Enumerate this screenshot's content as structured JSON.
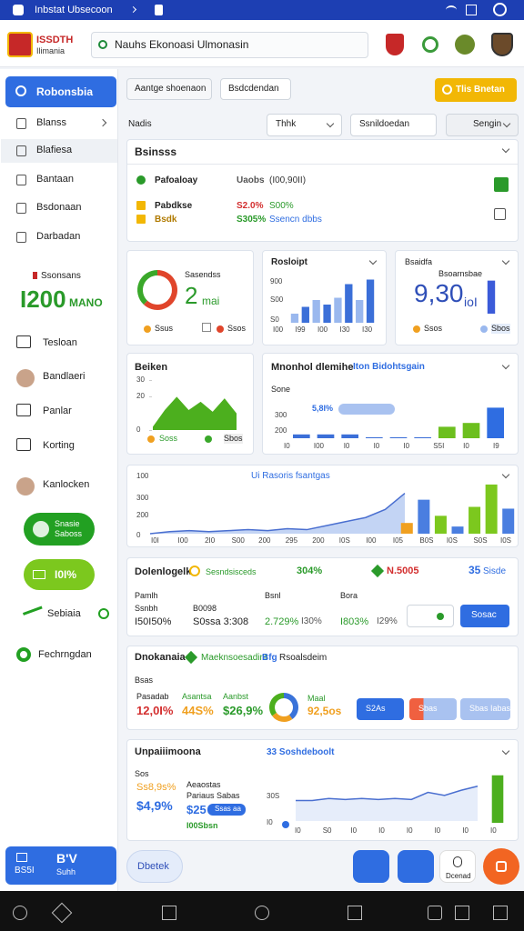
{
  "status_bar": {
    "title": "Inbstat Ubsecoon"
  },
  "header": {
    "logo": "ISSDTH",
    "logo_sub": "Ilimania",
    "search": "Nauhs Ekonoasi Ulmonasin"
  },
  "sidebar": {
    "active": "Robonsbia",
    "items": [
      "Blanss",
      "Blafiesa",
      "Bantaan",
      "Bsdonaan",
      "Darbadan"
    ],
    "stat_label": "Ssonsans",
    "stat_value": "I200",
    "stat_unit": "MANO",
    "links": [
      "Tesloan",
      "Bandlaeri",
      "Panlar",
      "Korting",
      "Kanlocken"
    ],
    "pill1": [
      "Snasie",
      "Saboss"
    ],
    "pill2": "I0I%",
    "toggle_label": "Sebiaia",
    "footer_link": "Fechrngdan",
    "bottom": {
      "title": "B'V",
      "left": "BS5I",
      "right": "Suhh"
    }
  },
  "toolbar": {
    "buttons": [
      "Aantge shoenaon",
      "Bsdcdendan"
    ],
    "cta": "Tlis Bnetan",
    "label": "Nadis",
    "filters": [
      "Thhk",
      "Ssnildoedan",
      "Sengin"
    ]
  },
  "business": {
    "title": "Bsinsss",
    "rows": [
      [
        "Pafoaloay",
        "Uaobs",
        "(I00,90II)"
      ],
      [
        "Pabdkse",
        "S2.0%",
        "S00%"
      ],
      [
        "Bsdk",
        "S305%",
        "Ssencn dbbs"
      ]
    ]
  },
  "donut_card": {
    "title": "Sasendss",
    "value": "2",
    "unit": "mai",
    "legend": [
      "Ssus",
      "Ssos"
    ],
    "chart": {
      "type": "donut",
      "values": [
        62,
        38
      ],
      "colors": [
        "#e0452b",
        "#3aa82a"
      ]
    }
  },
  "bars_card": {
    "title": "Rosloipt",
    "y_labels": [
      "900",
      "S00",
      "S0"
    ],
    "x_labels": [
      "I00",
      "I99",
      "I00",
      "I30",
      "I30"
    ],
    "chart": {
      "type": "bar",
      "values": [
        8,
        14,
        20,
        16,
        22,
        34,
        20,
        38
      ],
      "ylim": [
        0,
        40
      ],
      "colors": [
        "#9ab8ee",
        "#3b6fd8",
        "#9ab8ee",
        "#3b6fd8",
        "#9ab8ee",
        "#3b6fd8",
        "#9ab8ee",
        "#3b6fd8"
      ]
    }
  },
  "bigstat_card": {
    "title": "Bsaidfa",
    "subtitle": "Bsoarnsbae",
    "value": "9,30",
    "unit": "ioI",
    "legend": [
      "Ssos",
      "Sbos"
    ],
    "chart": {
      "type": "bar",
      "values": [
        40
      ],
      "ylim": [
        0,
        44
      ],
      "color": "#3b5bd9"
    }
  },
  "area_card": {
    "title": "Beiken",
    "legend": [
      "Soss",
      "Sbos"
    ],
    "chart": {
      "type": "area",
      "values": [
        2,
        12,
        20,
        12,
        17,
        11,
        19,
        10
      ],
      "ylim": [
        0,
        30
      ],
      "yticks": [
        30,
        20,
        0
      ],
      "color": "#4caf1e"
    }
  },
  "mnonhol_card": {
    "title": "Mnonhol dlemihe",
    "tag": "Iton Bidohtsgain",
    "label": "Sone",
    "pill": "5,8I%",
    "y_labels": [
      "300",
      "200"
    ],
    "x_labels": [
      "I0",
      "I00",
      "I0",
      "I0",
      "I0",
      "S5I",
      "I0",
      "I9"
    ],
    "chart": {
      "type": "bar",
      "values": [
        2,
        2,
        2,
        0.5,
        0.5,
        0.5,
        6,
        8,
        16
      ],
      "ylim": [
        0,
        20
      ],
      "colors": [
        "#3b6fd8",
        "#3b6fd8",
        "#3b6fd8",
        "#3b6fd8",
        "#3b6fd8",
        "#3b6fd8",
        "#6cbf1e",
        "#6cbf1e",
        "#2f6de1"
      ]
    }
  },
  "line_card": {
    "title": "Ui Rasoris fsantgas",
    "y_labels": [
      "100",
      "300",
      "200",
      "0"
    ],
    "x_labels": [
      "I0I",
      "I00",
      "2I0",
      "S00",
      "200",
      "295",
      "200",
      "I0S",
      "I00",
      "I05",
      "B0S",
      "I0S",
      "S0S",
      "I0S"
    ],
    "chart": {
      "type": "line",
      "values": [
        0,
        2,
        3,
        2,
        3,
        4,
        3,
        5,
        4,
        8,
        12,
        16,
        24,
        40
      ],
      "ylim": [
        0,
        45
      ],
      "color": "#4a6fd0",
      "fill": "#a9c2f0"
    },
    "bars": {
      "type": "bar",
      "values": [
        12,
        38,
        20,
        8,
        30,
        55,
        28
      ],
      "ylim": [
        0,
        60
      ],
      "colors": [
        "#f0a020",
        "#4a7ee0",
        "#7cc81e",
        "#4a7ee0",
        "#7cc81e",
        "#7cc81e",
        "#4a7ee0"
      ]
    }
  },
  "metrics_card": {
    "title": "Dolenlogelk",
    "badge": "Sesndsisceds",
    "pct": "304%",
    "chip": "N.5005",
    "count": "35",
    "count_label": "Sisde",
    "cols": [
      {
        "labels": [
          "Pamlh",
          "Ssnbh"
        ],
        "value": "I50I50%"
      },
      {
        "labels": [
          "B0098"
        ],
        "value": "S0ssa 3:308"
      },
      {
        "labels": [
          "Bsnl"
        ],
        "value": "2.729%",
        "value2": "I30%"
      },
      {
        "labels": [
          "Bora"
        ],
        "value": "I803%",
        "value2": "I29%"
      }
    ],
    "button": "Sosac"
  },
  "dnokanaia_card": {
    "title": "Dnokanaia",
    "subtitle": "Maeknsoesadint",
    "tag": "Bfg",
    "tag2": "Rsoalsdeim",
    "label": "Bsas",
    "stats": [
      {
        "label": "Pasadab",
        "value": "12,0I%"
      },
      {
        "label": "Asantsa",
        "value": "44S%"
      },
      {
        "label": "Aanbst",
        "value": "$26,9%"
      }
    ],
    "chart": {
      "type": "donut",
      "values": [
        40,
        25,
        35
      ],
      "colors": [
        "#3a73d9",
        "#f0a020",
        "#4caf1e"
      ]
    },
    "donut_label": "Maal",
    "donut_value": "92,5os",
    "buttons": [
      "S2As",
      "Sbas",
      "Sbas Iabas"
    ]
  },
  "unpai_card": {
    "title": "Unpaiiimoona",
    "tag": "33 Soshdeboolt",
    "lines": [
      "Sos",
      "Ss8,9s%",
      "$4,9%",
      "I00Sbsn"
    ],
    "mid": [
      "Aeaostas",
      "Pariaus Sabas",
      "$25",
      "Ssas aa"
    ],
    "y_labels": [
      "30S",
      "I0"
    ],
    "x_labels": [
      "I0",
      "S0",
      "I0",
      "I0",
      "I0",
      "I0",
      "I0",
      "I0"
    ],
    "chart": {
      "type": "line",
      "values": [
        20,
        20,
        22,
        21,
        22,
        21,
        22,
        21,
        28,
        25,
        30,
        34
      ],
      "ylim": [
        0,
        40
      ],
      "color": "#4a6fd0",
      "fill": "#dbe6f8"
    },
    "bars": {
      "type": "bar",
      "values": [
        55
      ],
      "ylim": [
        0,
        60
      ],
      "color": "#4caf1e"
    }
  },
  "bottom_nav": {
    "pill": "Dbetek",
    "button": "Dcenad"
  }
}
